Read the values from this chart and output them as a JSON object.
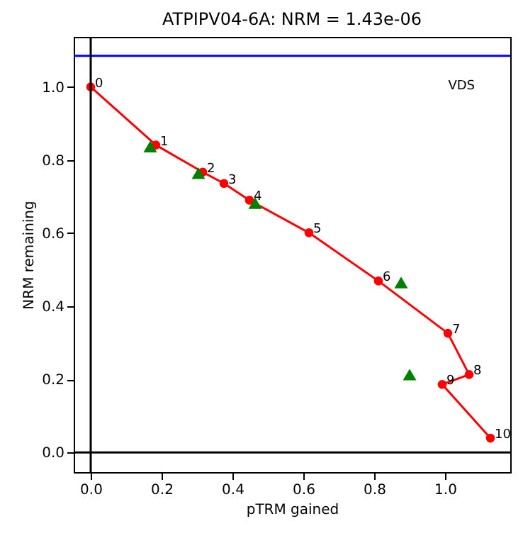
{
  "chart_data": {
    "type": "line",
    "title": "ATPIPV04-6A: NRM =  1.43e-06",
    "xlabel": "pTRM gained",
    "ylabel": "NRM remaining",
    "xlim": [
      -0.048,
      1.184
    ],
    "ylim": [
      -0.054,
      1.137
    ],
    "xticks": [
      {
        "value": 0,
        "label": "0.0"
      },
      0.2,
      0.4,
      0.6,
      0.8,
      {
        "value": 1,
        "label": "1.0"
      }
    ],
    "yticks": [
      {
        "value": 0,
        "label": "0.0"
      },
      0.2,
      0.4,
      0.6,
      0.8,
      {
        "value": 1,
        "label": "1.0"
      }
    ],
    "grid": false,
    "series": [
      {
        "color": "#ff0000",
        "marker": "circle",
        "x": [
          0,
          0.184,
          0.316,
          0.376,
          0.448,
          0.616,
          0.812,
          1.008,
          1.068,
          0.992,
          1.128
        ],
        "values": [
          1.0,
          0.841,
          0.767,
          0.736,
          0.69,
          0.601,
          0.469,
          0.326,
          0.213,
          0.186,
          0.039
        ]
      },
      {
        "type": "scatter",
        "color": "#008000",
        "marker": "triangle",
        "x": [
          0.168,
          0.304,
          0.464,
          0.876,
          0.9
        ],
        "values": [
          0.837,
          0.764,
          0.682,
          0.465,
          0.213
        ]
      }
    ],
    "ref_lines": [
      {
        "axis": "y",
        "value": 1.085,
        "color": "#0000ff"
      },
      {
        "axis": "x",
        "value": 0,
        "color": "#000000"
      },
      {
        "axis": "y",
        "value": 0,
        "color": "#000000"
      }
    ],
    "annotations": [
      {
        "text": "0",
        "x": 0,
        "y": 1.0
      },
      {
        "text": "1",
        "x": 0.184,
        "y": 0.841
      },
      {
        "text": "2",
        "x": 0.316,
        "y": 0.767
      },
      {
        "text": "3",
        "x": 0.376,
        "y": 0.736
      },
      {
        "text": "4",
        "x": 0.448,
        "y": 0.69
      },
      {
        "text": "5",
        "x": 0.616,
        "y": 0.601
      },
      {
        "text": "6",
        "x": 0.812,
        "y": 0.469
      },
      {
        "text": "7",
        "x": 1.008,
        "y": 0.326
      },
      {
        "text": "8",
        "x": 1.068,
        "y": 0.213
      },
      {
        "text": "9",
        "x": 0.992,
        "y": 0.186
      },
      {
        "text": "10",
        "x": 1.128,
        "y": 0.039
      },
      "VDS"
    ]
  }
}
